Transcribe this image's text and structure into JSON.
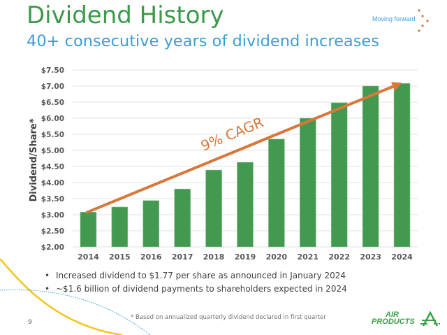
{
  "header": {
    "title": "Dividend History",
    "subtitle": "40+ consecutive years of dividend increases",
    "tagline": "Moving forward"
  },
  "colors": {
    "title": "#3a9a4a",
    "subtitle": "#3a9fd8",
    "bar": "#43994f",
    "trend": "#d9773a",
    "grid": "#e6e6e6",
    "axis_text": "#595959"
  },
  "chart_data": {
    "type": "bar",
    "title": "",
    "xlabel": "",
    "ylabel": "Dividend/Share*",
    "categories": [
      "2014",
      "2015",
      "2016",
      "2017",
      "2018",
      "2019",
      "2020",
      "2021",
      "2022",
      "2023",
      "2024"
    ],
    "values": [
      3.08,
      3.24,
      3.44,
      3.8,
      4.39,
      4.63,
      5.35,
      6.0,
      6.48,
      7.0,
      7.08
    ],
    "ylim": [
      2.0,
      7.5
    ],
    "yticks": [
      2.0,
      2.5,
      3.0,
      3.5,
      4.0,
      4.5,
      5.0,
      5.5,
      6.0,
      6.5,
      7.0,
      7.5
    ],
    "ytick_labels": [
      "$2.00",
      "$2.50",
      "$3.00",
      "$3.50",
      "$4.00",
      "$4.50",
      "$5.00",
      "$5.50",
      "$6.00",
      "$6.50",
      "$7.00",
      "$7.50"
    ],
    "grid": true,
    "legend": "none",
    "annotations": [
      {
        "type": "arrow",
        "from": {
          "x": "2014",
          "y": 3.15
        },
        "to": {
          "x": "2024",
          "y": 7.1
        },
        "label": "9% CAGR"
      }
    ]
  },
  "bullets": [
    "Increased dividend to $1.77 per share as announced in January 2024",
    "~$1.6 billion of dividend payments to shareholders expected in 2024"
  ],
  "footnote": "* Based on annualized quarterly dividend declared in first quarter",
  "page_number": "9",
  "logo": {
    "line1": "AIR",
    "line2": "PRODUCTS"
  }
}
